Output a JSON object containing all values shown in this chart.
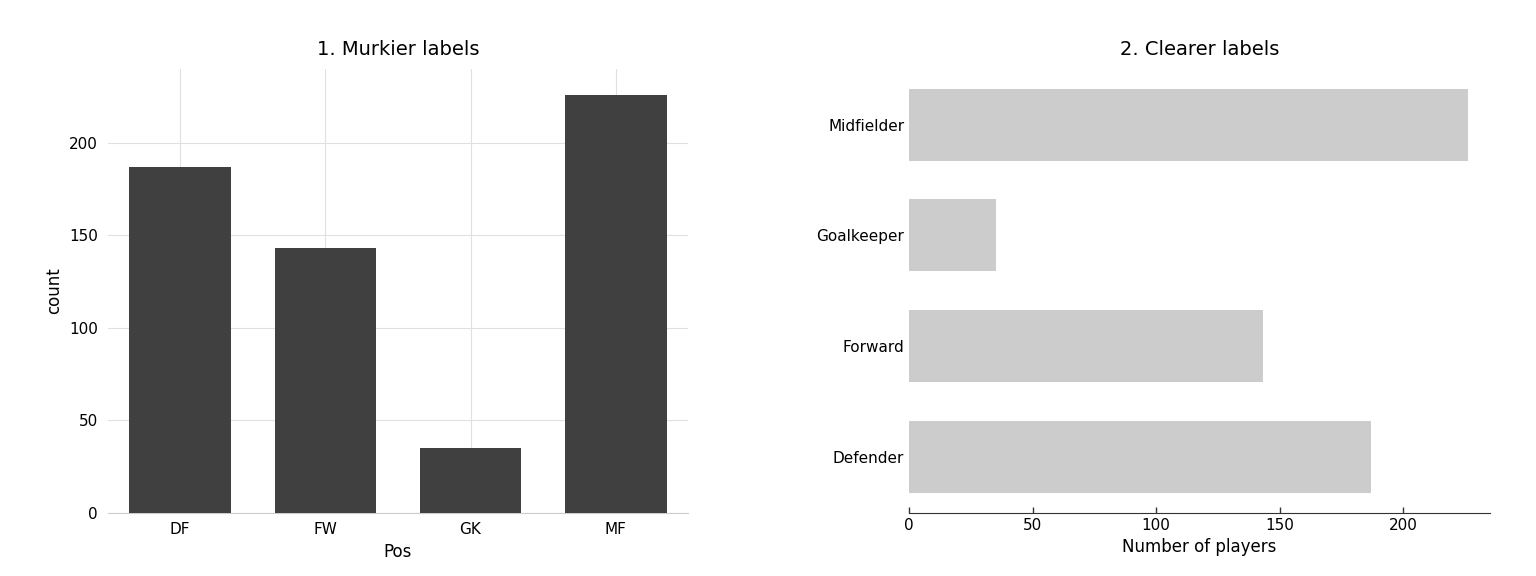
{
  "left": {
    "title": "1. Murkier labels",
    "categories": [
      "DF",
      "FW",
      "GK",
      "MF"
    ],
    "values": [
      187,
      143,
      35,
      226
    ],
    "bar_color": "#404040",
    "xlabel": "Pos",
    "ylabel": "count",
    "yticks": [
      0,
      50,
      100,
      150,
      200
    ],
    "ylim": [
      0,
      240
    ]
  },
  "right": {
    "title": "2. Clearer labels",
    "categories": [
      "Midfielder",
      "Goalkeeper",
      "Forward",
      "Defender"
    ],
    "values": [
      226,
      35,
      143,
      187
    ],
    "bar_color": "#cccccc",
    "xlabel": "Number of players",
    "xticks": [
      0,
      50,
      100,
      150,
      200
    ],
    "xlim": [
      0,
      235
    ]
  },
  "bg_color": "#ffffff",
  "panel_bg": "#ffffff",
  "grid_color": "#e0e0e0",
  "title_fontsize": 14,
  "label_fontsize": 12,
  "tick_fontsize": 11
}
